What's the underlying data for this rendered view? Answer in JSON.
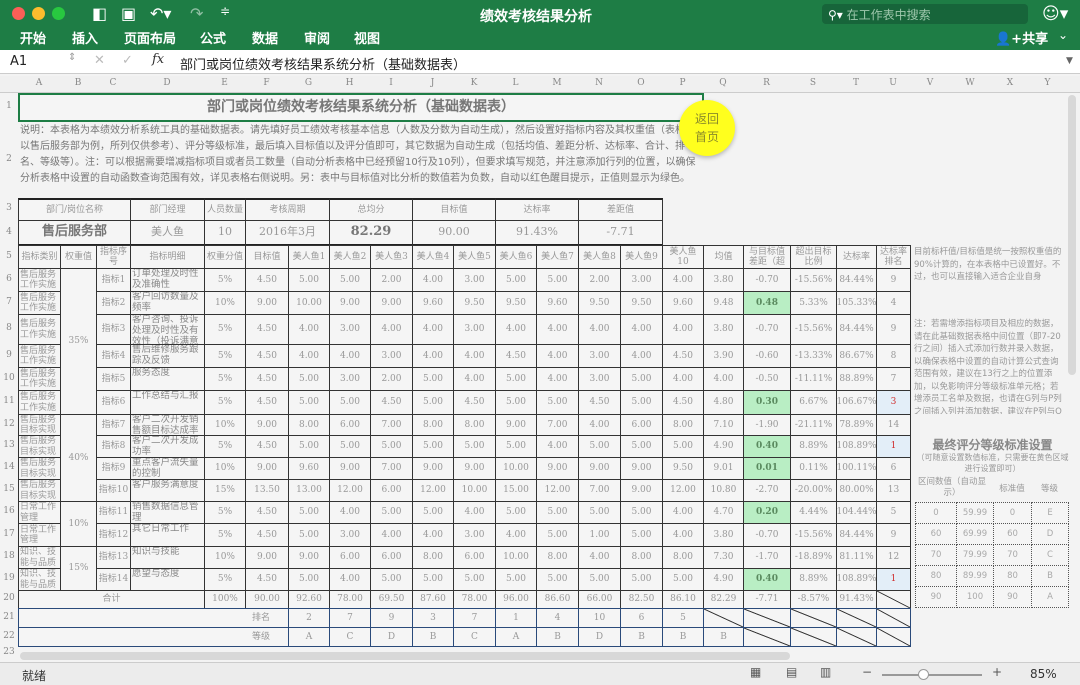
{
  "window": {
    "title": "绩效考核结果分析",
    "search_placeholder": "在工作表中搜索",
    "share": "共享"
  },
  "menu": [
    "开始",
    "插入",
    "页面布局",
    "公式",
    "数据",
    "审阅",
    "视图"
  ],
  "formula": {
    "cell_ref": "A1",
    "content": "部门或岗位绩效考核结果系统分析（基础数据表）"
  },
  "columns": [
    "A",
    "B",
    "C",
    "D",
    "E",
    "F",
    "G",
    "H",
    "I",
    "J",
    "K",
    "L",
    "M",
    "N",
    "O",
    "P",
    "Q",
    "R",
    "S",
    "T",
    "U",
    "V",
    "W",
    "X",
    "Y"
  ],
  "sheet": {
    "title": "部门或岗位绩效考核结果系统分析（基础数据表）",
    "description": "说明：本表格为本绩效分析系统工具的基础数据表。请先填好员工绩效考核基本信息（人数及分数为自动生成），然后设置好指标内容及其权重值（表格中以售后服务部为例，所列仅供参考）、评分等级标准，最后填入目标值以及评分值即可，其它数据为自动生成（包括均值、差距分析、达标率、合计、排名、等级等）。注：可以根据需要增减指标项目或者员工数量（自动分析表格中已经预留10行及10列），但要求填写规范，并注意添加行列的位置，以确保分析表格中设置的自动函数查询范围有效，详见表格右侧说明。另：表中与目标值对比分析的数值若为负数，自动以红色醒目提示，正值则显示为绿色。",
    "summary": {
      "headers": [
        "部门/岗位名称",
        "部门经理",
        "人员数量",
        "考核周期",
        "总均分",
        "目标值",
        "达标率",
        "差距值"
      ],
      "values": [
        "售后服务部",
        "美人鱼",
        "10",
        "2016年3月",
        "82.29",
        "90.00",
        "91.43%",
        "-7.71"
      ]
    },
    "headers": [
      "指标类别",
      "权重值",
      "指标序号",
      "指标明细",
      "权重分值",
      "目标值",
      "美人鱼1",
      "美人鱼2",
      "美人鱼3",
      "美人鱼4",
      "美人鱼5",
      "美人鱼6",
      "美人鱼7",
      "美人鱼8",
      "美人鱼9",
      "美人鱼10",
      "均值",
      "与目标值差距（超",
      "超出目标比例",
      "达标率",
      "达标率排名"
    ],
    "weights": [
      "35%",
      "40%",
      "10%",
      "15%"
    ],
    "rows": [
      {
        "cat": "售后服务工作实施",
        "code": "指标1",
        "detail": "订单处理及时性及准确性",
        "w": "5%",
        "target": "4.50",
        "s": [
          "5.00",
          "5.00",
          "2.00",
          "4.00",
          "3.00",
          "5.00",
          "5.00",
          "2.00",
          "3.00",
          "4.00"
        ],
        "avg": "3.80",
        "gap": "-0.70",
        "over": "-15.56%",
        "rate": "84.44%",
        "rank": "9"
      },
      {
        "cat": "售后服务工作实施",
        "code": "指标2",
        "detail": "客户回访数量及频率",
        "w": "10%",
        "target": "9.00",
        "s": [
          "10.00",
          "9.00",
          "9.00",
          "9.60",
          "9.50",
          "9.50",
          "9.60",
          "9.50",
          "9.50",
          "9.60"
        ],
        "avg": "9.48",
        "gap": "0.48",
        "over": "5.33%",
        "rate": "105.33%",
        "rank": "4"
      },
      {
        "cat": "售后服务工作实施",
        "code": "指标3",
        "detail": "客户咨询、投诉处理及时性及有效性（投诉满意",
        "w": "5%",
        "target": "4.50",
        "s": [
          "4.00",
          "3.00",
          "4.00",
          "4.00",
          "3.00",
          "4.00",
          "4.00",
          "4.00",
          "4.00",
          "4.00"
        ],
        "avg": "3.80",
        "gap": "-0.70",
        "over": "-15.56%",
        "rate": "84.44%",
        "rank": "9"
      },
      {
        "cat": "售后服务工作实施",
        "code": "指标4",
        "detail": "售后维修服务跟踪及反馈",
        "w": "5%",
        "target": "4.50",
        "s": [
          "4.00",
          "4.00",
          "3.00",
          "4.00",
          "4.00",
          "4.50",
          "4.00",
          "3.00",
          "4.00",
          "4.50"
        ],
        "avg": "3.90",
        "gap": "-0.60",
        "over": "-13.33%",
        "rate": "86.67%",
        "rank": "8"
      },
      {
        "cat": "售后服务工作实施",
        "code": "指标5",
        "detail": "服务态度",
        "w": "5%",
        "target": "4.50",
        "s": [
          "5.00",
          "3.00",
          "2.00",
          "5.00",
          "4.00",
          "5.00",
          "4.00",
          "3.00",
          "5.00",
          "4.00"
        ],
        "avg": "4.00",
        "gap": "-0.50",
        "over": "-11.11%",
        "rate": "88.89%",
        "rank": "7"
      },
      {
        "cat": "售后服务工作实施",
        "code": "指标6",
        "detail": "工作总结与汇报",
        "w": "5%",
        "target": "4.50",
        "s": [
          "5.00",
          "5.00",
          "4.50",
          "5.00",
          "4.50",
          "5.00",
          "5.00",
          "4.50",
          "5.00",
          "4.50"
        ],
        "avg": "4.80",
        "gap": "0.30",
        "over": "6.67%",
        "rate": "106.67%",
        "rank": "3"
      },
      {
        "cat": "售后服务目标实现",
        "code": "指标7",
        "detail": "客户二次开发销售额目标达成率",
        "w": "10%",
        "target": "9.00",
        "s": [
          "8.00",
          "6.00",
          "7.00",
          "8.00",
          "8.00",
          "9.00",
          "7.00",
          "4.00",
          "6.00",
          "8.00"
        ],
        "avg": "7.10",
        "gap": "-1.90",
        "over": "-21.11%",
        "rate": "78.89%",
        "rank": "14"
      },
      {
        "cat": "售后服务目标实现",
        "code": "指标8",
        "detail": "客户二次开发成功率",
        "w": "5%",
        "target": "4.50",
        "s": [
          "5.00",
          "5.00",
          "5.00",
          "5.00",
          "5.00",
          "5.00",
          "4.00",
          "5.00",
          "5.00",
          "5.00"
        ],
        "avg": "4.90",
        "gap": "0.40",
        "over": "8.89%",
        "rate": "108.89%",
        "rank": "1"
      },
      {
        "cat": "售后服务目标实现",
        "code": "指标9",
        "detail": "重点客户流失量的控制",
        "w": "10%",
        "target": "9.00",
        "s": [
          "9.60",
          "9.00",
          "7.00",
          "9.00",
          "9.00",
          "10.00",
          "9.00",
          "9.00",
          "9.00",
          "9.50"
        ],
        "avg": "9.01",
        "gap": "0.01",
        "over": "0.11%",
        "rate": "100.11%",
        "rank": "6"
      },
      {
        "cat": "售后服务目标实现",
        "code": "指标10",
        "detail": "客户服务满意度",
        "w": "15%",
        "target": "13.50",
        "s": [
          "13.00",
          "12.00",
          "6.00",
          "12.00",
          "10.00",
          "15.00",
          "12.00",
          "7.00",
          "9.00",
          "12.00"
        ],
        "avg": "10.80",
        "gap": "-2.70",
        "over": "-20.00%",
        "rate": "80.00%",
        "rank": "13"
      },
      {
        "cat": "日常工作管理",
        "code": "指标11",
        "detail": "销售数据信息管理",
        "w": "5%",
        "target": "4.50",
        "s": [
          "5.00",
          "4.00",
          "5.00",
          "5.00",
          "4.00",
          "5.00",
          "5.00",
          "5.00",
          "5.00",
          "4.00"
        ],
        "avg": "4.70",
        "gap": "0.20",
        "over": "4.44%",
        "rate": "104.44%",
        "rank": "5"
      },
      {
        "cat": "日常工作管理",
        "code": "指标12",
        "detail": "其它日常工作",
        "w": "5%",
        "target": "4.50",
        "s": [
          "5.00",
          "3.00",
          "4.00",
          "4.00",
          "3.00",
          "4.00",
          "5.00",
          "1.00",
          "5.00",
          "4.00"
        ],
        "avg": "3.80",
        "gap": "-0.70",
        "over": "-15.56%",
        "rate": "84.44%",
        "rank": "9"
      },
      {
        "cat": "知识、技能与品质",
        "code": "指标13",
        "detail": "知识与技能",
        "w": "10%",
        "target": "9.00",
        "s": [
          "9.00",
          "6.00",
          "6.00",
          "8.00",
          "6.00",
          "10.00",
          "8.00",
          "4.00",
          "8.00",
          "8.00"
        ],
        "avg": "7.30",
        "gap": "-1.70",
        "over": "-18.89%",
        "rate": "81.11%",
        "rank": "12"
      },
      {
        "cat": "知识、技能与品质",
        "code": "指标14",
        "detail": "愿望与态度",
        "w": "5%",
        "target": "4.50",
        "s": [
          "5.00",
          "4.00",
          "5.00",
          "5.00",
          "5.00",
          "5.00",
          "5.00",
          "5.00",
          "5.00",
          "5.00"
        ],
        "avg": "4.90",
        "gap": "0.40",
        "over": "8.89%",
        "rate": "108.89%",
        "rank": "1"
      }
    ],
    "total": {
      "label": "合计",
      "w": "100%",
      "target": "90.00",
      "s": [
        "92.60",
        "78.00",
        "69.50",
        "87.60",
        "78.00",
        "96.00",
        "86.60",
        "66.00",
        "82.50",
        "86.10"
      ],
      "avg": "82.29",
      "gap": "-7.71",
      "over": "-8.57%",
      "rate": "91.43%"
    },
    "ranking": {
      "label": "排名",
      "values": [
        "2",
        "7",
        "9",
        "3",
        "7",
        "1",
        "4",
        "10",
        "6",
        "5"
      ]
    },
    "grade": {
      "label": "等级",
      "values": [
        "A",
        "C",
        "D",
        "B",
        "C",
        "A",
        "B",
        "D",
        "B",
        "B"
      ],
      "avg": "B"
    },
    "return_button": [
      "返回",
      "首页"
    ],
    "note1": "目前标杆值/目标值是统一按照权重值的90%计算的，在本表格中已设置好。不过，也可以直接输入适合企业自身",
    "note2": "注：若需增添指标项目及相应的数据，请在此基础数据表格中间位置（即7-20行之间）插入式添加行数并录入数据，以确保表格中设置的自动计算公式查询范围有效，建议在13行之上的位置添加，以免影响评分等级标准单元格；若增添员工名单及数据，也请在G列与P列之间插入列并添加数据，建议在P列与O列之间添加",
    "grade_table": {
      "title": "最终评分等级标准设置",
      "subtitle": "（可随意设置数值标准，只需要在黄色区域进行设置即可）",
      "headers": [
        "区间数值（自动显示）",
        "标准值",
        "等级"
      ],
      "rows": [
        [
          "0",
          "59.99",
          "0",
          "E"
        ],
        [
          "60",
          "69.99",
          "60",
          "D"
        ],
        [
          "70",
          "79.99",
          "70",
          "C"
        ],
        [
          "80",
          "89.99",
          "80",
          "B"
        ],
        [
          "90",
          "100",
          "90",
          "A"
        ]
      ]
    }
  },
  "status": {
    "text": "就绪",
    "zoom": "85%"
  },
  "colors": {
    "ribbon": "#1e7d45",
    "positive": "#b9eec4",
    "top_rank": "#d03030",
    "button": "#ffff1e"
  }
}
